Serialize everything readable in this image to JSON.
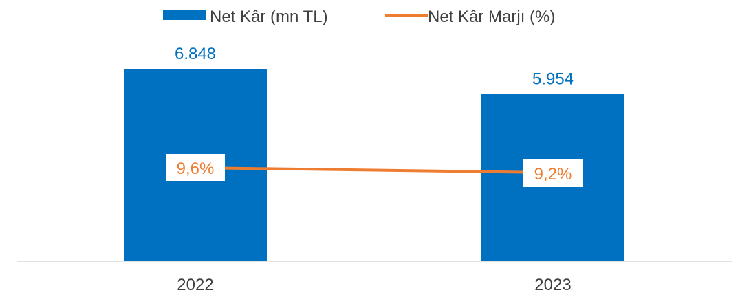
{
  "chart_data": {
    "type": "bar",
    "categories": [
      "2022",
      "2023"
    ],
    "series": [
      {
        "name": "Net Kâr (mn TL)",
        "type": "bar",
        "values": [
          6848,
          5954
        ],
        "labels": [
          "6.848",
          "5.954"
        ],
        "color": "#0070C0"
      },
      {
        "name": "Net Kâr Marjı (%)",
        "type": "line",
        "values": [
          9.6,
          9.2
        ],
        "labels": [
          "9,6%",
          "9,2%"
        ],
        "color": "#ED7D31"
      }
    ],
    "legend_position": "top",
    "grid": false
  },
  "colors": {
    "axis": "#D9D9D9",
    "tick_text": "#404040",
    "label_box": "#FFFFFF"
  }
}
